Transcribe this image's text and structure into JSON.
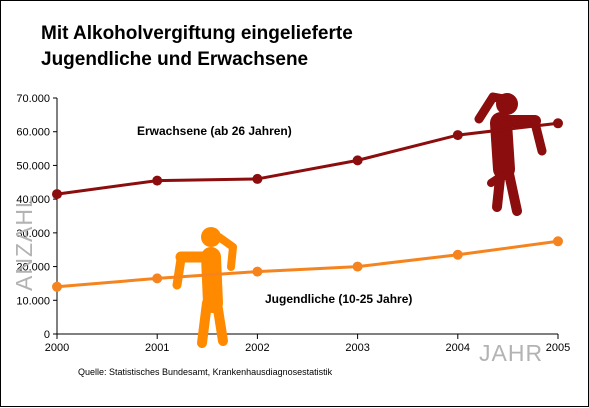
{
  "chart_data": {
    "type": "line",
    "title_lines": [
      "Mit Alkoholvergiftung eingelieferte",
      "Jugendliche und Erwachsene"
    ],
    "xlabel": "JAHR",
    "ylabel": "ANZAHL",
    "x": [
      "2000",
      "2001",
      "2002",
      "2003",
      "2004",
      "2005"
    ],
    "y_ticks": [
      "0",
      "10.000",
      "20.000",
      "30.000",
      "40.000",
      "50.000",
      "60.000",
      "70.000"
    ],
    "ylim": [
      0,
      70000
    ],
    "grid": false,
    "series": [
      {
        "name": "Erwachsene (ab 26 Jahren)",
        "color": "#8b0d0d",
        "values": [
          41500,
          45500,
          46000,
          51500,
          59000,
          62500
        ]
      },
      {
        "name": "Jugendliche (10-25 Jahre)",
        "color": "#f5841f",
        "values": [
          14000,
          16500,
          18500,
          20000,
          23500,
          27500
        ]
      }
    ],
    "source": "Quelle: Statistisches Bundesamt, Krankenhausdiagnosestatistik",
    "icons": [
      "drunk-adult-figure-icon",
      "drunk-teen-figure-icon"
    ]
  }
}
